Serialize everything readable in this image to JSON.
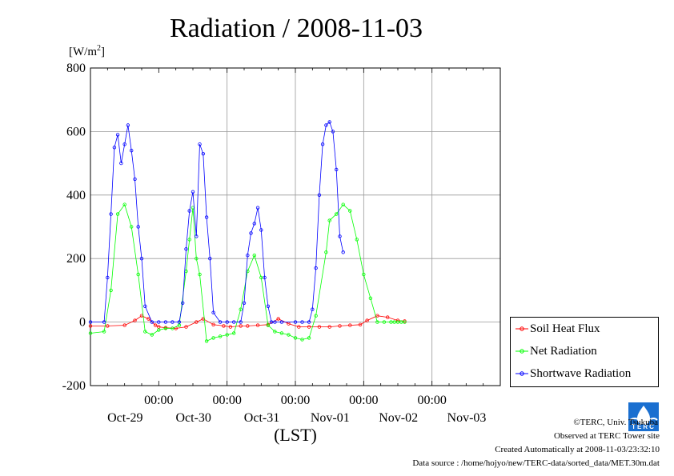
{
  "chart_data": {
    "type": "line",
    "title": "Radiation / 2008-11-03",
    "ylabel_unit": "[W/m",
    "ylabel_sup": "2",
    "ylabel_close": "]",
    "xlabel": "(LST)",
    "ylim": [
      -200,
      800
    ],
    "yticks": [
      "800",
      "600",
      "400",
      "200",
      "0",
      "-200"
    ],
    "ytick_values": [
      800,
      600,
      400,
      200,
      0,
      -200
    ],
    "xlim_days": [
      -1,
      5
    ],
    "x_major_ticks": [
      1,
      2,
      3,
      4,
      5
    ],
    "x_ticks": [
      {
        "time": "00:00",
        "date": "Oct-29",
        "day": 0
      },
      {
        "time": "00:00",
        "date": "Oct-30",
        "day": 1
      },
      {
        "time": "00:00",
        "date": "Oct-31",
        "day": 2
      },
      {
        "time": "00:00",
        "date": "Nov-01",
        "day": 3
      },
      {
        "time": "00:00",
        "date": "Nov-02",
        "day": 4
      },
      {
        "time": "",
        "date": "Nov-03",
        "day": 5
      }
    ],
    "series": [
      {
        "name": "Soil Heat Flux",
        "color": "#ff0000",
        "x": [
          -1,
          -0.75,
          -0.5,
          -0.35,
          -0.25,
          -0.15,
          -0.05,
          0,
          0.1,
          0.25,
          0.4,
          0.55,
          0.65,
          0.8,
          0.95,
          1.05,
          1.2,
          1.3,
          1.45,
          1.6,
          1.75,
          1.9,
          2.05,
          2.2,
          2.35,
          2.5,
          2.65,
          2.8,
          2.95,
          3.05,
          3.2,
          3.35,
          3.5,
          3.6
        ],
        "values": [
          -12,
          -12,
          -10,
          5,
          20,
          10,
          -10,
          -15,
          -18,
          -20,
          -15,
          0,
          10,
          -8,
          -12,
          -15,
          -12,
          -12,
          -10,
          -8,
          10,
          -5,
          -15,
          -15,
          -15,
          -15,
          -12,
          -10,
          -8,
          5,
          20,
          15,
          5,
          3
        ]
      },
      {
        "name": "Net Radiation",
        "color": "#00ff00",
        "x": [
          -1,
          -0.8,
          -0.7,
          -0.6,
          -0.5,
          -0.4,
          -0.3,
          -0.2,
          -0.1,
          0,
          0.1,
          0.2,
          0.3,
          0.4,
          0.45,
          0.5,
          0.55,
          0.6,
          0.7,
          0.8,
          0.9,
          1.0,
          1.1,
          1.2,
          1.3,
          1.4,
          1.5,
          1.6,
          1.7,
          1.8,
          1.9,
          2.0,
          2.1,
          2.2,
          2.3,
          2.45,
          2.5,
          2.6,
          2.7,
          2.8,
          2.9,
          3.0,
          3.1,
          3.2,
          3.3,
          3.4,
          3.45,
          3.5,
          3.55,
          3.6
        ],
        "values": [
          -35,
          -30,
          100,
          340,
          370,
          300,
          150,
          -30,
          -40,
          -25,
          -20,
          -20,
          -10,
          160,
          260,
          360,
          200,
          150,
          -60,
          -50,
          -45,
          -40,
          -35,
          40,
          160,
          210,
          140,
          -10,
          -30,
          -35,
          -40,
          -50,
          -55,
          -50,
          20,
          220,
          320,
          340,
          370,
          350,
          260,
          150,
          75,
          0,
          0,
          0,
          0,
          0,
          0,
          0
        ]
      },
      {
        "name": "Shortwave Radiation",
        "color": "#0000ff",
        "x": [
          -1,
          -0.8,
          -0.75,
          -0.7,
          -0.65,
          -0.6,
          -0.55,
          -0.5,
          -0.45,
          -0.4,
          -0.35,
          -0.3,
          -0.25,
          -0.2,
          -0.1,
          0,
          0.1,
          0.2,
          0.3,
          0.35,
          0.4,
          0.45,
          0.5,
          0.55,
          0.6,
          0.65,
          0.7,
          0.75,
          0.8,
          0.9,
          1.0,
          1.1,
          1.2,
          1.25,
          1.3,
          1.35,
          1.4,
          1.45,
          1.5,
          1.55,
          1.6,
          1.65,
          1.7,
          1.8,
          2.0,
          2.1,
          2.2,
          2.25,
          2.3,
          2.35,
          2.4,
          2.45,
          2.5,
          2.55,
          2.6,
          2.65,
          2.7
        ],
        "values": [
          0,
          0,
          140,
          340,
          550,
          590,
          500,
          560,
          620,
          540,
          450,
          300,
          200,
          50,
          0,
          0,
          0,
          0,
          0,
          60,
          230,
          350,
          410,
          270,
          560,
          530,
          330,
          200,
          30,
          0,
          0,
          0,
          0,
          60,
          210,
          280,
          310,
          360,
          290,
          140,
          50,
          0,
          0,
          0,
          0,
          0,
          0,
          40,
          170,
          400,
          560,
          620,
          630,
          600,
          480,
          270,
          220
        ]
      }
    ],
    "legend": {
      "position": "right",
      "entries": [
        "Soil Heat Flux",
        "Net Radiation",
        "Shortwave Radiation"
      ]
    },
    "grid": true
  },
  "credits": {
    "copyright": "©TERC, Univ. Tsukuba",
    "site": "Observed at TERC Tower site",
    "created": "Created Automatically at 2008-11-03/23:32:10",
    "source": "Data source : /home/hojyo/new/TERC-data/sorted_data/MET.30m.dat"
  },
  "logo": {
    "text": "TERC",
    "color": "#1a6fd0"
  }
}
